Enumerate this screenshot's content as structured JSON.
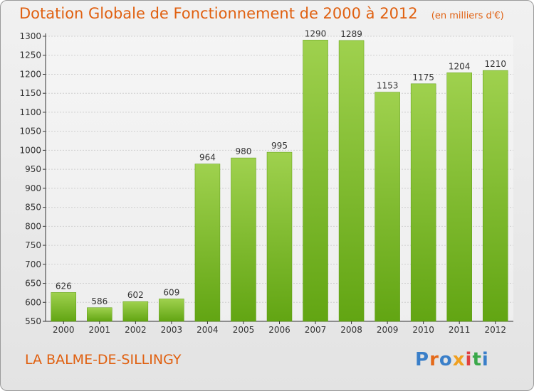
{
  "header": {
    "title": "Dotation Globale de Fonctionnement de 2000 à 2012",
    "unit": "(en milliers d'€)"
  },
  "footer": {
    "commune": "LA BALME-DE-SILLINGY",
    "logo_text": "Proxiti"
  },
  "colors": {
    "title": "#e06010",
    "bar_top": "#9fd14e",
    "bar_bottom": "#62a513",
    "grid": "#cfcfcf"
  },
  "chart_data": {
    "type": "bar",
    "title": "Dotation Globale de Fonctionnement de 2000 à 2012",
    "ylabel": "(en milliers d'€)",
    "xlabel": "",
    "categories": [
      "2000",
      "2001",
      "2002",
      "2003",
      "2004",
      "2005",
      "2006",
      "2007",
      "2008",
      "2009",
      "2010",
      "2011",
      "2012"
    ],
    "values": [
      626,
      586,
      602,
      609,
      964,
      980,
      995,
      1290,
      1289,
      1153,
      1175,
      1204,
      1210
    ],
    "ylim": [
      550,
      1300
    ],
    "yticks": [
      550,
      600,
      650,
      700,
      750,
      800,
      850,
      900,
      950,
      1000,
      1050,
      1100,
      1150,
      1200,
      1250,
      1300
    ],
    "grid": true,
    "data_labels": true
  }
}
